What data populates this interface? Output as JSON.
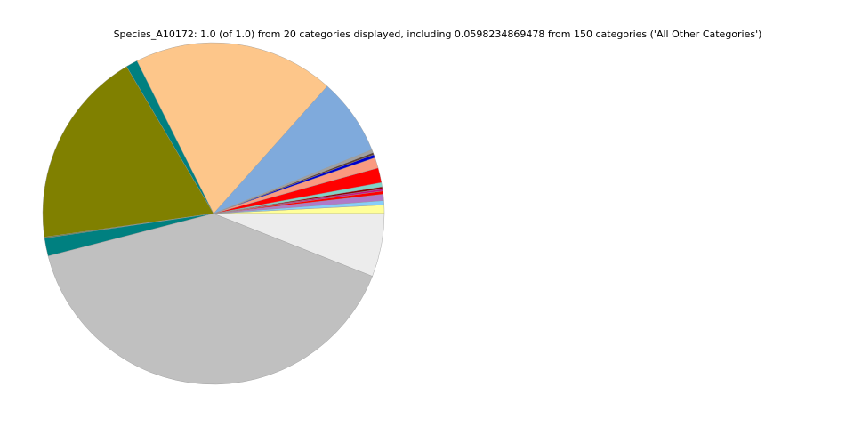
{
  "chart_data": {
    "type": "pie",
    "title": "Species_A10172: 1.0 (of 1.0) from 20 categories displayed, including 0.0598234869478 from 150 categories ('All Other Categories')",
    "values": [
      0.008,
      0.004,
      0.006,
      0.003,
      0.002,
      0.002,
      0.004,
      0.014,
      0.01,
      0.003,
      0.002,
      0.003,
      0.073,
      0.19,
      0.011,
      0.187,
      0.001,
      0.017,
      0.4,
      0.0598
    ],
    "colors": [
      "#ffff99",
      "#87cefa",
      "#b07ac8",
      "#ff0000",
      "#c71585",
      "#8b0000",
      "#7fd4c8",
      "#ff0000",
      "#fa9a80",
      "#0000cd",
      "#5c4033",
      "#a0a0a0",
      "#7faadc",
      "#fdc68a",
      "#008080",
      "#808000",
      "#556b2f",
      "#008080",
      "#c0c0c0",
      "#ececec"
    ]
  }
}
